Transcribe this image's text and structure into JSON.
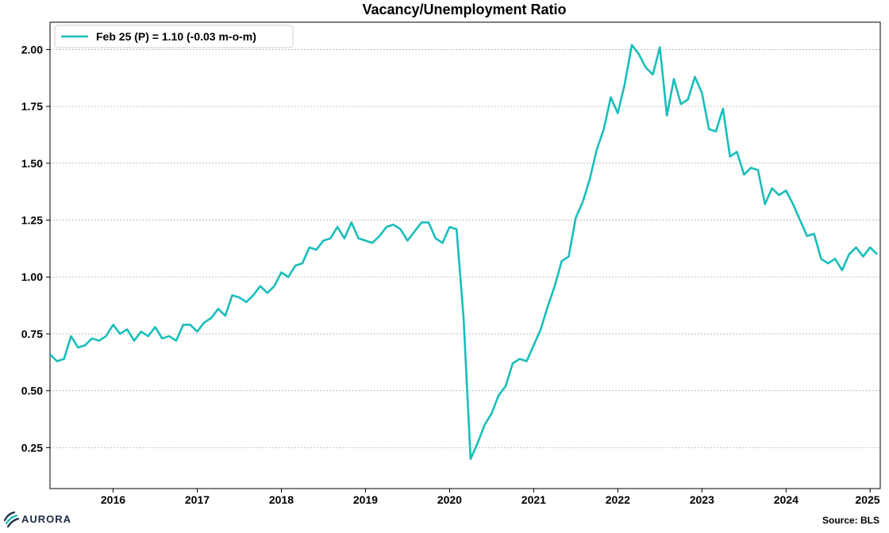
{
  "chart_data": {
    "type": "line",
    "title": "Vacancy/Unemployment Ratio",
    "xlabel": "",
    "ylabel": "",
    "xlim": [
      2015.25,
      2025.12
    ],
    "ylim": [
      0.07,
      2.12
    ],
    "grid": "horizontal dotted",
    "x_ticks": [
      2016,
      2017,
      2018,
      2019,
      2020,
      2021,
      2022,
      2023,
      2024,
      2025
    ],
    "x_tick_labels": [
      "2016",
      "2017",
      "2018",
      "2019",
      "2020",
      "2021",
      "2022",
      "2023",
      "2024",
      "2025"
    ],
    "y_ticks": [
      0.25,
      0.5,
      0.75,
      1.0,
      1.25,
      1.5,
      1.75,
      2.0
    ],
    "y_tick_labels": [
      "0.25",
      "0.50",
      "0.75",
      "1.00",
      "1.25",
      "1.50",
      "1.75",
      "2.00"
    ],
    "legend_position": "top-left",
    "series": [
      {
        "name": "Feb 25 (P) = 1.10 (-0.03 m-o-m)",
        "color": "#17bebb",
        "x_start": 2015.25,
        "x_step": 0.08333,
        "values": [
          0.66,
          0.63,
          0.64,
          0.74,
          0.69,
          0.7,
          0.73,
          0.72,
          0.74,
          0.79,
          0.75,
          0.77,
          0.72,
          0.76,
          0.74,
          0.78,
          0.73,
          0.74,
          0.72,
          0.79,
          0.79,
          0.76,
          0.8,
          0.82,
          0.86,
          0.83,
          0.92,
          0.91,
          0.89,
          0.92,
          0.96,
          0.93,
          0.96,
          1.02,
          1.0,
          1.05,
          1.06,
          1.13,
          1.12,
          1.16,
          1.17,
          1.22,
          1.17,
          1.24,
          1.17,
          1.16,
          1.15,
          1.18,
          1.22,
          1.23,
          1.21,
          1.16,
          1.2,
          1.24,
          1.24,
          1.17,
          1.15,
          1.22,
          1.21,
          0.82,
          0.2,
          0.27,
          0.35,
          0.4,
          0.48,
          0.52,
          0.62,
          0.64,
          0.63,
          0.7,
          0.77,
          0.87,
          0.96,
          1.07,
          1.09,
          1.26,
          1.33,
          1.43,
          1.56,
          1.65,
          1.79,
          1.72,
          1.85,
          2.02,
          1.98,
          1.92,
          1.89,
          2.01,
          1.71,
          1.87,
          1.76,
          1.78,
          1.88,
          1.81,
          1.65,
          1.64,
          1.74,
          1.53,
          1.55,
          1.45,
          1.48,
          1.47,
          1.32,
          1.39,
          1.36,
          1.38,
          1.32,
          1.25,
          1.18,
          1.19,
          1.08,
          1.06,
          1.08,
          1.03,
          1.1,
          1.13,
          1.09,
          1.13,
          1.1
        ]
      }
    ]
  },
  "footer": {
    "logo": "AURORA",
    "source": "Source: BLS"
  },
  "colors": {
    "line": "#17bebb",
    "logo": "#1f2a44",
    "grid": "#b0b0b0"
  }
}
